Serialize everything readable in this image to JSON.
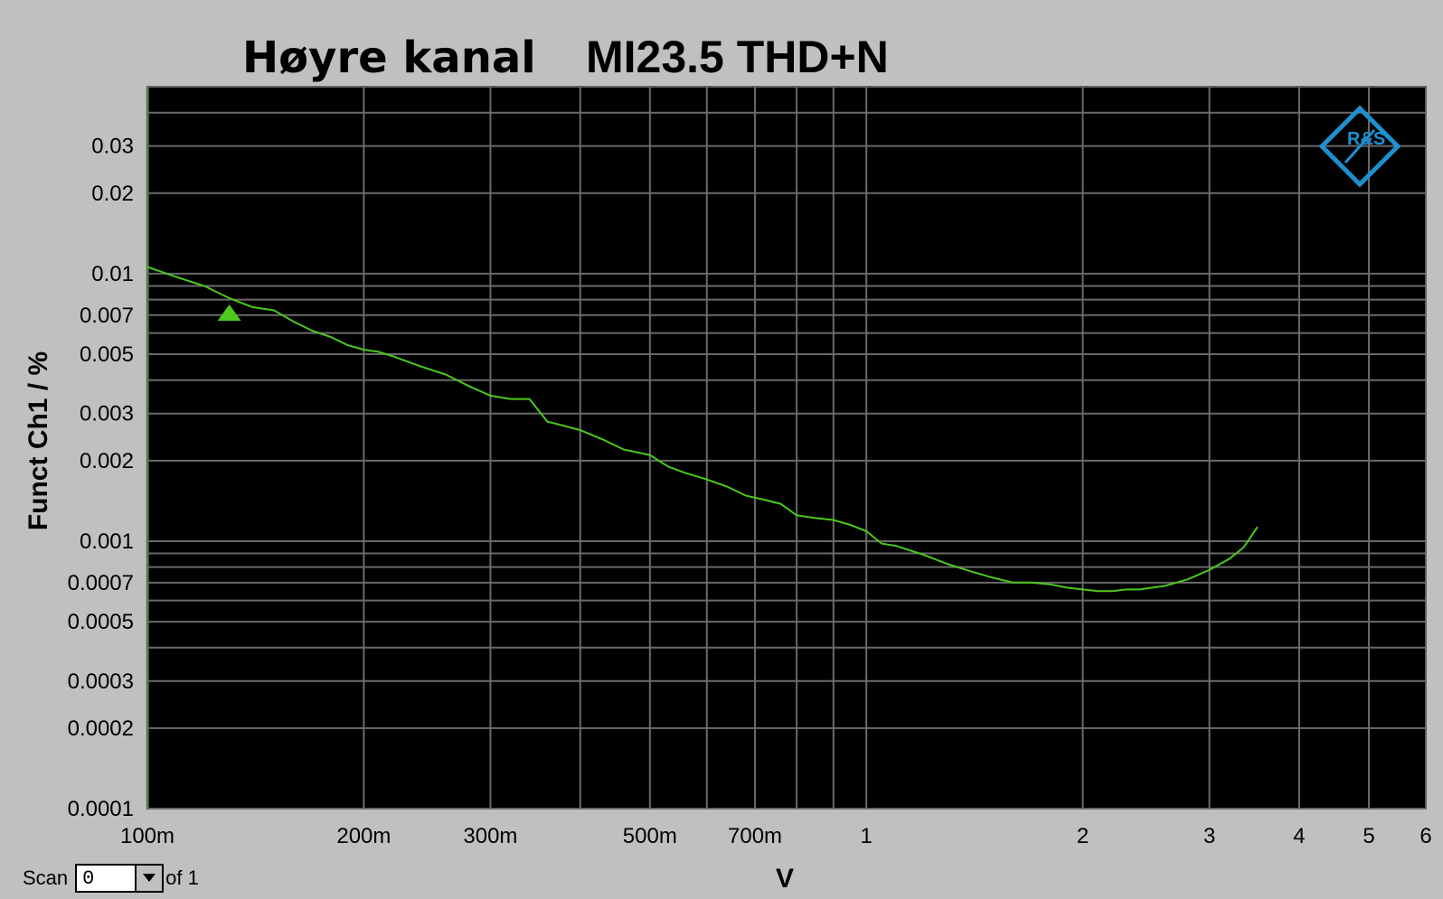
{
  "chart_data": {
    "type": "line",
    "title": "Høyre kanal",
    "subtitle": "MI23.5 THD+N",
    "xlabel": "V",
    "ylabel": "Funct Ch1 / %",
    "x_scale": "log",
    "y_scale": "log",
    "xlim": [
      0.1,
      6
    ],
    "ylim": [
      0.0001,
      0.05
    ],
    "grid": true,
    "x_ticks": [
      {
        "value": 0.1,
        "label": "100m"
      },
      {
        "value": 0.2,
        "label": "200m"
      },
      {
        "value": 0.3,
        "label": "300m"
      },
      {
        "value": 0.5,
        "label": "500m"
      },
      {
        "value": 0.7,
        "label": "700m"
      },
      {
        "value": 1,
        "label": "1"
      },
      {
        "value": 2,
        "label": "2"
      },
      {
        "value": 3,
        "label": "3"
      },
      {
        "value": 4,
        "label": "4"
      },
      {
        "value": 5,
        "label": "5"
      },
      {
        "value": 6,
        "label": "6"
      }
    ],
    "x_grid": [
      0.1,
      0.2,
      0.3,
      0.4,
      0.5,
      0.6,
      0.7,
      0.8,
      0.9,
      1,
      2,
      3,
      4,
      5
    ],
    "y_ticks": [
      {
        "value": 0.0001,
        "label": "0.0001"
      },
      {
        "value": 0.0002,
        "label": "0.0002"
      },
      {
        "value": 0.0003,
        "label": "0.0003"
      },
      {
        "value": 0.0005,
        "label": "0.0005"
      },
      {
        "value": 0.0007,
        "label": "0.0007"
      },
      {
        "value": 0.001,
        "label": "0.001"
      },
      {
        "value": 0.002,
        "label": "0.002"
      },
      {
        "value": 0.003,
        "label": "0.003"
      },
      {
        "value": 0.005,
        "label": "0.005"
      },
      {
        "value": 0.007,
        "label": "0.007"
      },
      {
        "value": 0.01,
        "label": "0.01"
      },
      {
        "value": 0.02,
        "label": "0.02"
      },
      {
        "value": 0.03,
        "label": "0.03"
      }
    ],
    "y_grid": [
      0.0001,
      0.0002,
      0.0003,
      0.0004,
      0.0005,
      0.0006,
      0.0007,
      0.0008,
      0.0009,
      0.001,
      0.002,
      0.003,
      0.004,
      0.005,
      0.006,
      0.007,
      0.008,
      0.009,
      0.01,
      0.02,
      0.03,
      0.04
    ],
    "series": [
      {
        "color": "#4cc81e",
        "x": [
          0.1,
          0.11,
          0.12,
          0.13,
          0.14,
          0.15,
          0.16,
          0.17,
          0.18,
          0.19,
          0.2,
          0.21,
          0.22,
          0.24,
          0.26,
          0.28,
          0.3,
          0.32,
          0.34,
          0.36,
          0.38,
          0.4,
          0.43,
          0.46,
          0.5,
          0.53,
          0.56,
          0.6,
          0.64,
          0.68,
          0.72,
          0.76,
          0.8,
          0.85,
          0.9,
          0.95,
          1.0,
          1.05,
          1.1,
          1.2,
          1.3,
          1.4,
          1.5,
          1.6,
          1.7,
          1.8,
          1.9,
          2.0,
          2.1,
          2.2,
          2.3,
          2.4,
          2.5,
          2.6,
          2.7,
          2.8,
          2.9,
          3.0,
          3.1,
          3.2,
          3.35,
          3.5
        ],
        "y": [
          0.0106,
          0.0097,
          0.009,
          0.0081,
          0.0075,
          0.0073,
          0.0066,
          0.0061,
          0.0058,
          0.0054,
          0.0052,
          0.0051,
          0.0049,
          0.0045,
          0.0042,
          0.0038,
          0.0035,
          0.0034,
          0.0034,
          0.0028,
          0.0027,
          0.0026,
          0.0024,
          0.0022,
          0.0021,
          0.0019,
          0.0018,
          0.0017,
          0.0016,
          0.00148,
          0.00143,
          0.00138,
          0.00125,
          0.00122,
          0.0012,
          0.00115,
          0.00109,
          0.00098,
          0.00096,
          0.00089,
          0.00082,
          0.00077,
          0.00073,
          0.0007,
          0.0007,
          0.00069,
          0.00067,
          0.00066,
          0.00065,
          0.00065,
          0.00066,
          0.00066,
          0.00067,
          0.00068,
          0.0007,
          0.00072,
          0.00075,
          0.00078,
          0.00082,
          0.00086,
          0.00095,
          0.00113
        ]
      }
    ],
    "marker": {
      "x": 0.13,
      "y": 0.0071,
      "shape": "triangle-up",
      "color": "#4cc81e"
    }
  },
  "logo": {
    "text": "R&S",
    "color": "#1e90d0"
  },
  "scan": {
    "label": "Scan",
    "value": "0",
    "of_text": "of 1"
  },
  "colors": {
    "plot_bg": "#000000",
    "grid": "#6a6a6a",
    "frame_bg": "#c0c0c0"
  }
}
